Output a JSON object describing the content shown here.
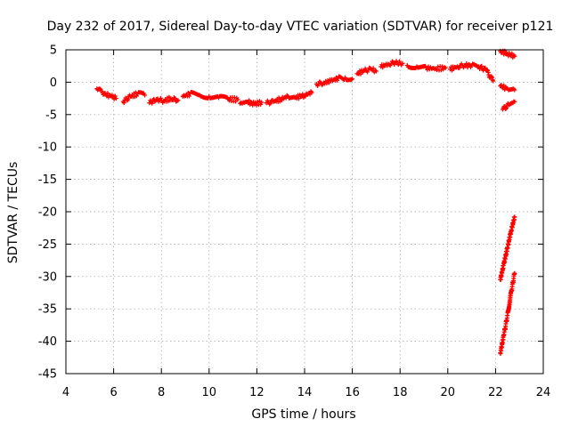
{
  "chart_data": {
    "type": "scatter",
    "title": "Day 232 of 2017, Sidereal Day-to-day VTEC variation (SDTVAR) for receiver p121",
    "xlabel": "GPS time / hours",
    "ylabel": "SDTVAR / TECUs",
    "xlim": [
      4,
      24
    ],
    "ylim": [
      -45,
      5
    ],
    "xticks": [
      "4",
      "6",
      "8",
      "10",
      "12",
      "14",
      "16",
      "18",
      "20",
      "22",
      "24"
    ],
    "yticks": [
      "5",
      "0",
      "-5",
      "-10",
      "-15",
      "-20",
      "-25",
      "-30",
      "-35",
      "-40",
      "-45"
    ],
    "grid": true,
    "marker": "+",
    "colors": {
      "series": "#ff0000",
      "grid": "#a0a0a0",
      "axis": "#000000"
    },
    "series": [
      {
        "name": "SDTVAR",
        "segments": [
          {
            "x": [
              5.3,
              5.6,
              5.9,
              6.1
            ],
            "y": [
              -1.0,
              -1.8,
              -2.2,
              -2.5
            ]
          },
          {
            "x": [
              6.4,
              6.7,
              7.0,
              7.3
            ],
            "y": [
              -3.0,
              -2.2,
              -1.8,
              -2.0
            ]
          },
          {
            "x": [
              7.5,
              7.8,
              8.1,
              8.4,
              8.7
            ],
            "y": [
              -3.2,
              -2.6,
              -2.9,
              -2.5,
              -2.8
            ]
          },
          {
            "x": [
              8.9,
              9.2,
              9.6,
              10.0,
              10.4,
              10.8,
              11.2
            ],
            "y": [
              -2.2,
              -1.8,
              -2.0,
              -2.2,
              -2.4,
              -2.6,
              -2.7
            ]
          },
          {
            "x": [
              11.3,
              11.6,
              11.9,
              12.2
            ],
            "y": [
              -3.3,
              -3.0,
              -3.4,
              -3.1
            ]
          },
          {
            "x": [
              12.4,
              12.7,
              13.0,
              13.3,
              13.6,
              14.0,
              14.3
            ],
            "y": [
              -3.2,
              -3.0,
              -2.6,
              -2.2,
              -2.4,
              -2.0,
              -1.6
            ]
          },
          {
            "x": [
              14.5,
              14.8,
              15.1,
              15.4,
              15.7,
              16.0
            ],
            "y": [
              -0.3,
              -0.1,
              0.2,
              0.6,
              0.7,
              0.5
            ]
          },
          {
            "x": [
              16.2,
              16.5,
              16.8,
              17.0
            ],
            "y": [
              1.3,
              1.8,
              2.0,
              1.7
            ]
          },
          {
            "x": [
              17.2,
              17.5,
              17.8,
              18.1
            ],
            "y": [
              2.4,
              2.8,
              3.0,
              2.9
            ]
          },
          {
            "x": [
              18.3,
              18.7,
              19.1,
              19.5,
              19.9
            ],
            "y": [
              2.6,
              2.4,
              2.2,
              2.1,
              2.2
            ]
          },
          {
            "x": [
              20.1,
              20.4,
              20.7,
              21.0,
              21.3,
              21.6,
              21.9
            ],
            "y": [
              2.0,
              2.4,
              2.6,
              2.6,
              2.4,
              1.9,
              0.2
            ]
          },
          {
            "x": [
              22.2,
              22.5,
              22.8
            ],
            "y": [
              4.8,
              4.4,
              4.0
            ]
          },
          {
            "x": [
              22.2,
              22.5,
              22.8
            ],
            "y": [
              -0.6,
              -1.0,
              -1.2
            ]
          },
          {
            "x": [
              22.3,
              22.55,
              22.8
            ],
            "y": [
              -4.2,
              -3.5,
              -3.0
            ]
          },
          {
            "x": [
              22.2,
              22.35,
              22.5,
              22.65,
              22.8
            ],
            "y": [
              -30.5,
              -28.0,
              -25.5,
              -23.0,
              -20.8
            ]
          },
          {
            "x": [
              22.2,
              22.35,
              22.5,
              22.65,
              22.8
            ],
            "y": [
              -41.8,
              -39.0,
              -36.0,
              -32.5,
              -29.5
            ]
          }
        ]
      }
    ]
  }
}
